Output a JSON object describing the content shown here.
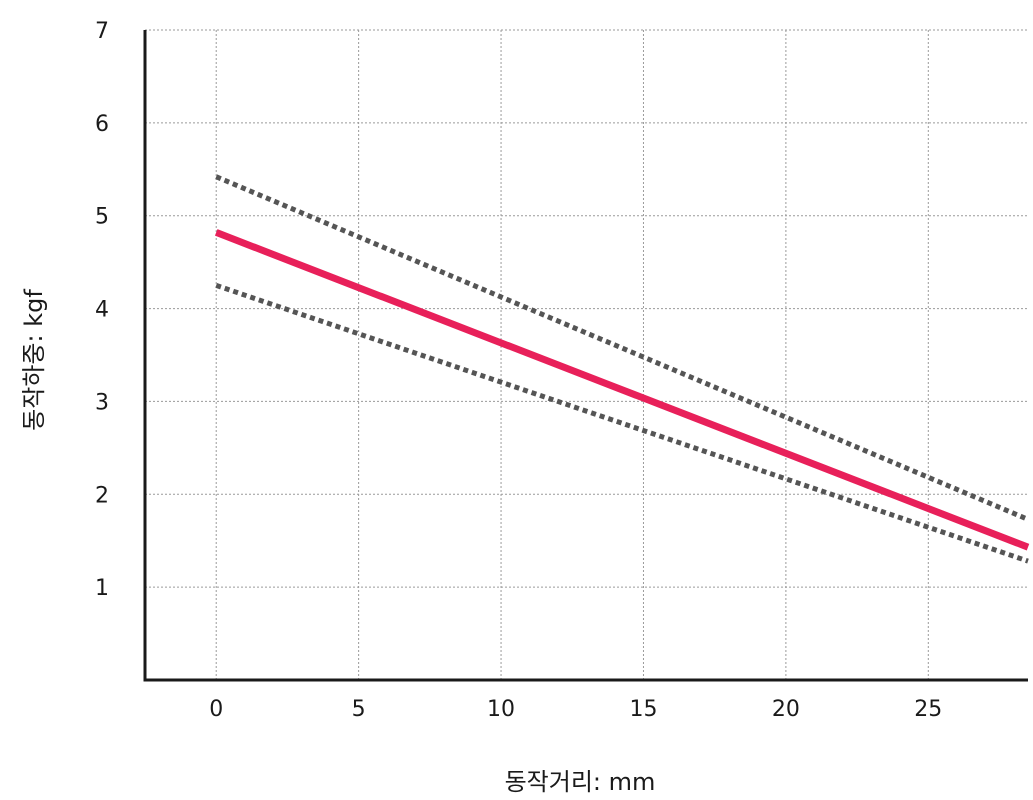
{
  "chart_data": {
    "type": "line",
    "title": "",
    "xlabel": "동작거리: mm",
    "ylabel": "동작하중: kgf",
    "xlim": [
      -2.5,
      28.5
    ],
    "ylim": [
      0,
      7
    ],
    "x_ticks": [
      0,
      5,
      10,
      15,
      20,
      25
    ],
    "y_ticks": [
      1,
      2,
      3,
      4,
      5,
      6,
      7
    ],
    "grid": true,
    "series": [
      {
        "x": [
          0,
          28.5
        ],
        "y": [
          4.82,
          1.43
        ],
        "color": "#e8205a",
        "dash": "solid"
      },
      {
        "x": [
          0,
          28.5
        ],
        "y": [
          5.42,
          1.73
        ],
        "color": "#555555",
        "dash": "dotted"
      },
      {
        "x": [
          0,
          28.5
        ],
        "y": [
          4.25,
          1.28
        ],
        "color": "#555555",
        "dash": "dotted"
      }
    ]
  }
}
